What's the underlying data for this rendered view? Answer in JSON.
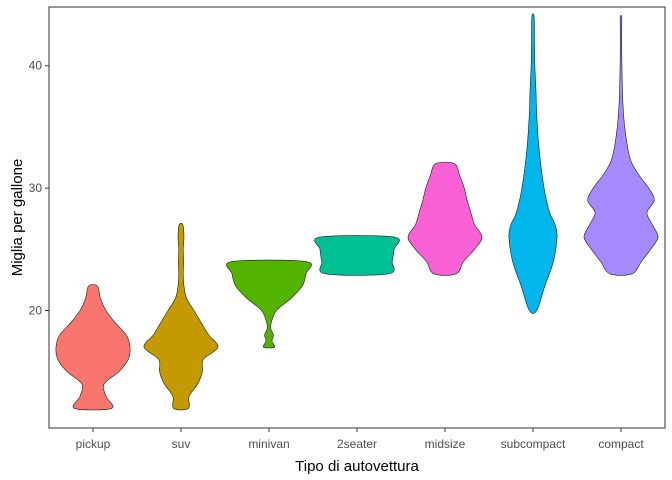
{
  "chart_data": {
    "type": "violin",
    "title": "",
    "xlabel": "Tipo di autovettura",
    "ylabel": "Miglia per gallone",
    "ylim": [
      10.4,
      44.8
    ],
    "yticks": [
      20,
      30,
      40
    ],
    "grid": false,
    "legend": "none",
    "categories": [
      "pickup",
      "suv",
      "minivan",
      "2seater",
      "midsize",
      "subcompact",
      "compact"
    ],
    "colors": [
      "#F8766D",
      "#C49A00",
      "#53B400",
      "#00C094",
      "#FB61D7",
      "#00B6EB",
      "#A58AFF"
    ],
    "series": [
      {
        "category": "pickup",
        "min": 12,
        "max": 22,
        "profile": [
          [
            12,
            0.5
          ],
          [
            13,
            0.35
          ],
          [
            14,
            0.3
          ],
          [
            15,
            0.7
          ],
          [
            16,
            0.95
          ],
          [
            17,
            1.0
          ],
          [
            18,
            0.9
          ],
          [
            19,
            0.6
          ],
          [
            20,
            0.35
          ],
          [
            21,
            0.2
          ],
          [
            22,
            0.12
          ]
        ]
      },
      {
        "category": "suv",
        "min": 12,
        "max": 27,
        "profile": [
          [
            12,
            0.2
          ],
          [
            13,
            0.22
          ],
          [
            14,
            0.45
          ],
          [
            15,
            0.58
          ],
          [
            16,
            0.6
          ],
          [
            17,
            1.0
          ],
          [
            18,
            0.75
          ],
          [
            19,
            0.55
          ],
          [
            20,
            0.35
          ],
          [
            21,
            0.15
          ],
          [
            22,
            0.08
          ],
          [
            23,
            0.06
          ],
          [
            24,
            0.07
          ],
          [
            25,
            0.06
          ],
          [
            26,
            0.08
          ],
          [
            27,
            0.05
          ]
        ]
      },
      {
        "category": "minivan",
        "min": 17,
        "max": 24,
        "profile": [
          [
            17,
            0.15
          ],
          [
            17.5,
            0.08
          ],
          [
            18,
            0.12
          ],
          [
            18.5,
            0.05
          ],
          [
            19,
            0.06
          ],
          [
            20,
            0.2
          ],
          [
            21,
            0.6
          ],
          [
            22,
            0.9
          ],
          [
            23,
            1.0
          ],
          [
            24,
            1.0
          ]
        ]
      },
      {
        "category": "2seater",
        "min": 23,
        "max": 26,
        "profile": [
          [
            23,
            0.85
          ],
          [
            24,
            0.95
          ],
          [
            25,
            1.0
          ],
          [
            26,
            1.0
          ]
        ]
      },
      {
        "category": "midsize",
        "min": 23,
        "max": 32,
        "profile": [
          [
            23,
            0.3
          ],
          [
            24,
            0.5
          ],
          [
            25,
            0.8
          ],
          [
            26,
            1.0
          ],
          [
            27,
            0.8
          ],
          [
            28,
            0.7
          ],
          [
            29,
            0.6
          ],
          [
            30,
            0.52
          ],
          [
            31,
            0.4
          ],
          [
            32,
            0.25
          ]
        ]
      },
      {
        "category": "subcompact",
        "min": 20,
        "max": 44,
        "profile": [
          [
            20,
            0.1
          ],
          [
            22,
            0.32
          ],
          [
            24,
            0.55
          ],
          [
            26,
            0.65
          ],
          [
            27,
            0.6
          ],
          [
            28,
            0.45
          ],
          [
            30,
            0.3
          ],
          [
            33,
            0.17
          ],
          [
            36,
            0.1
          ],
          [
            38,
            0.08
          ],
          [
            40,
            0.05
          ],
          [
            42,
            0.04
          ],
          [
            44,
            0.03
          ]
        ]
      },
      {
        "category": "compact",
        "min": 23,
        "max": 44,
        "profile": [
          [
            23,
            0.3
          ],
          [
            24,
            0.55
          ],
          [
            25,
            0.8
          ],
          [
            26,
            1.0
          ],
          [
            27,
            0.85
          ],
          [
            28,
            0.7
          ],
          [
            29,
            0.9
          ],
          [
            30,
            0.75
          ],
          [
            31,
            0.5
          ],
          [
            32,
            0.3
          ],
          [
            33,
            0.2
          ],
          [
            35,
            0.1
          ],
          [
            37,
            0.05
          ],
          [
            39,
            0.03
          ],
          [
            41,
            0.02
          ],
          [
            43,
            0.02
          ],
          [
            44,
            0.02
          ]
        ]
      }
    ]
  }
}
